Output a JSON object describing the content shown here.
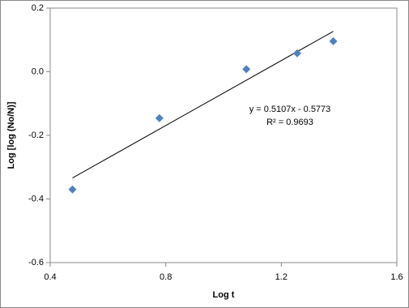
{
  "chart_data": {
    "type": "scatter",
    "x_label": "Log t",
    "y_label": "Log [log (No/N)]",
    "x": [
      0.477,
      0.778,
      1.079,
      1.255,
      1.38
    ],
    "series": [
      {
        "color": "#4f81bd",
        "values": [
          -0.37,
          -0.146,
          0.008,
          0.058,
          0.096
        ]
      }
    ],
    "trendline": {
      "x": [
        0.477,
        1.38
      ],
      "values": [
        -0.334,
        0.127
      ],
      "color": "#000000"
    },
    "annotations": [
      "y = 0.5107x - 0.5773",
      "R² = 0.9693"
    ],
    "xlim": [
      0.4,
      1.6
    ],
    "xticks": [
      0.4,
      0.8,
      1.2,
      1.6
    ],
    "ylim": [
      -0.6,
      0.2
    ],
    "yticks": [
      0.2,
      {
        "value": 0,
        "label": "0.0"
      },
      -0.2,
      -0.4,
      -0.6
    ],
    "grid": false
  }
}
